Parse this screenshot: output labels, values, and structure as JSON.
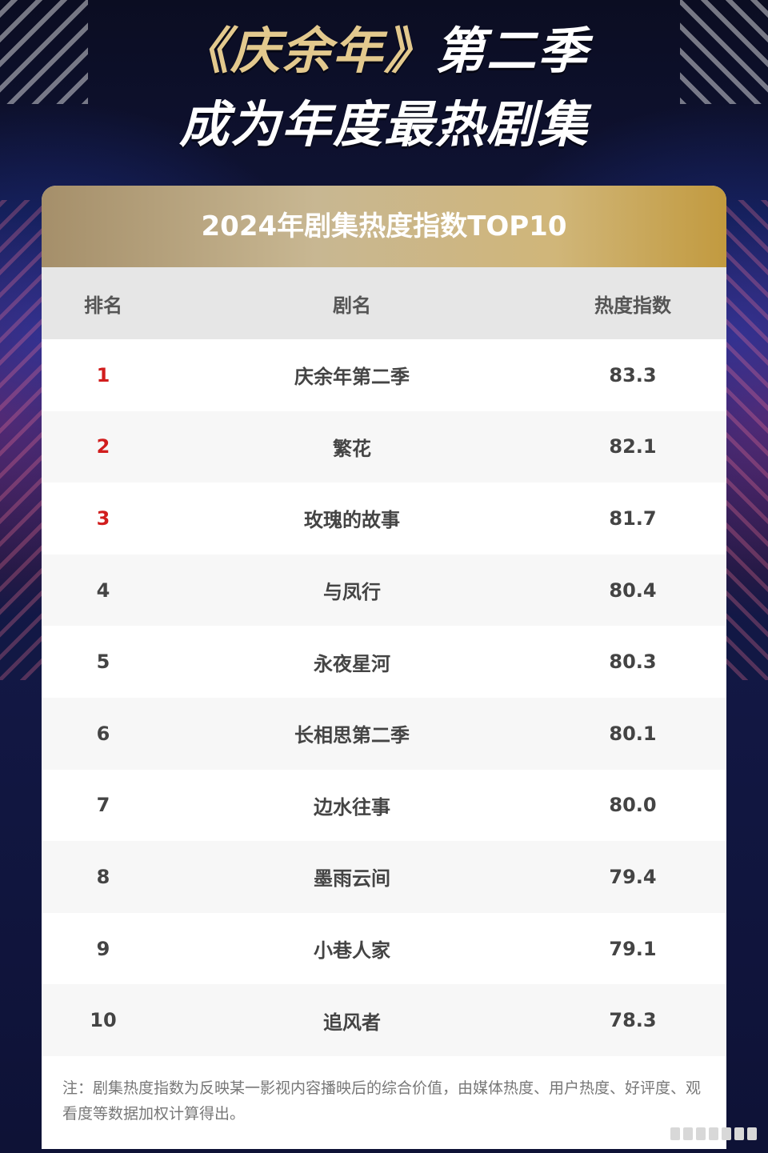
{
  "headline": {
    "line1_gold": "《庆余年》",
    "line1_white": "第二季",
    "line2": "成为年度最热剧集"
  },
  "card": {
    "title": "2024年剧集热度指数TOP10",
    "footnote": "注：剧集热度指数为反映某一影视内容播映后的综合价值，由媒体热度、用户热度、好评度、观看度等数据加权计算得出。"
  },
  "chart_data": {
    "type": "table",
    "title": "2024年剧集热度指数TOP10",
    "columns": [
      "排名",
      "剧名",
      "热度指数"
    ],
    "rows": [
      {
        "rank": "1",
        "name": "庆余年第二季",
        "value": "83.3"
      },
      {
        "rank": "2",
        "name": "繁花",
        "value": "82.1"
      },
      {
        "rank": "3",
        "name": "玫瑰的故事",
        "value": "81.7"
      },
      {
        "rank": "4",
        "name": "与凤行",
        "value": "80.4"
      },
      {
        "rank": "5",
        "name": "永夜星河",
        "value": "80.3"
      },
      {
        "rank": "6",
        "name": "长相思第二季",
        "value": "80.1"
      },
      {
        "rank": "7",
        "name": "边水往事",
        "value": "80.0"
      },
      {
        "rank": "8",
        "name": "墨雨云间",
        "value": "79.4"
      },
      {
        "rank": "9",
        "name": "小巷人家",
        "value": "79.1"
      },
      {
        "rank": "10",
        "name": "追风者",
        "value": "78.3"
      }
    ],
    "highlight_color": "#d11d1d",
    "highlight_ranks": 3
  }
}
